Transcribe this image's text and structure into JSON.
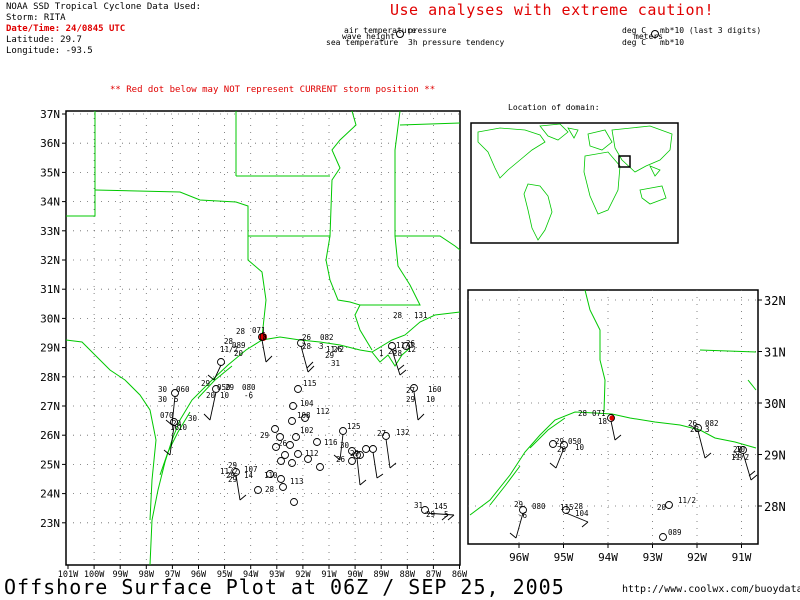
{
  "header": {
    "source": "NOAA SSD Tropical Cyclone Data Used:",
    "storm": "Storm: RITA",
    "datetime": "Date/Time: 24/0845 UTC",
    "latitude": "Latitude: 29.7",
    "longitude": "Longitude: -93.5"
  },
  "caution": "Use analyses with extreme caution!",
  "legend": {
    "air_temperature": "air temperature",
    "pressure": "pressure",
    "wave_height": "wave height",
    "sea_temperature": "sea temperature",
    "tendency": "3h pressure tendency",
    "deg_c": "deg C",
    "mb_last3": "mb*10 (last 3 digits)",
    "meters": "meters",
    "deg_c_2": "deg C",
    "mb_10": "mb*10"
  },
  "warning": "** Red dot below may NOT represent CURRENT storm position **",
  "domain_label": "Location of domain:",
  "main_map": {
    "lat_labels": [
      "37N",
      "36N",
      "35N",
      "34N",
      "33N",
      "32N",
      "31N",
      "30N",
      "29N",
      "28N",
      "27N",
      "26N",
      "25N",
      "24N",
      "23N"
    ],
    "lon_labels": [
      "101W",
      "100W",
      "99W",
      "98W",
      "97W",
      "96W",
      "95W",
      "94W",
      "93W",
      "92W",
      "91W",
      "90W",
      "89W",
      "88W",
      "87W",
      "86W"
    ],
    "station_labels": [
      "28",
      "071",
      "18",
      "26",
      "082",
      "28",
      "3",
      "26",
      "29",
      "31",
      "28",
      "11/2",
      "20",
      "089",
      "30",
      "060",
      "30",
      "5",
      "29",
      "050",
      "20",
      "10",
      "29",
      "080",
      "-6",
      "115",
      "104",
      "108",
      "112",
      "29",
      "26",
      "102",
      "112",
      "116",
      "125",
      "27",
      "132",
      "29",
      "26",
      "30",
      "11/2",
      "107",
      "29",
      "14",
      "110",
      "113",
      "29",
      "28",
      "11/2",
      "29",
      "28",
      "28",
      "131",
      "28",
      "1",
      "27",
      "160",
      "29",
      "10",
      "31",
      "145",
      "29",
      "5",
      "26",
      "12",
      "11/2",
      "20",
      "30",
      "070",
      "16",
      "10"
    ]
  },
  "inset_map": {
    "lat_labels": [
      "32N",
      "31N",
      "30N",
      "29N",
      "28N"
    ],
    "lon_labels": [
      "96W",
      "95W",
      "94W",
      "93W",
      "92W",
      "91W"
    ],
    "station_labels": [
      "28",
      "071",
      "18",
      "26",
      "082",
      "28",
      "3",
      "29",
      "26",
      "11/2",
      "10",
      "29",
      "050",
      "20",
      "10",
      "29",
      "080",
      "-6",
      "115",
      "28",
      "104",
      "11/2",
      "20",
      "089"
    ]
  },
  "storm_marker": {
    "color": "#e00000",
    "lat": 29.7,
    "lon": -93.5
  },
  "colors": {
    "coast": "#00c800",
    "frame": "#000000",
    "accent_red": "#e00000"
  },
  "footer": {
    "title": "Offshore Surface Plot at 06Z / SEP 25, 2005",
    "url": "http://www.coolwx.com/buoydata"
  }
}
